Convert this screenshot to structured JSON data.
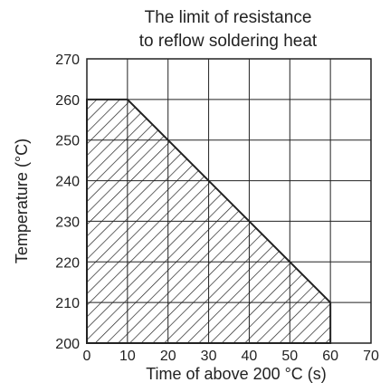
{
  "chart_data": {
    "type": "area",
    "title": "The limit of resistance",
    "subtitle": "to reflow soldering heat",
    "xlabel": "Time of above 200 °C (s)",
    "ylabel": "Temperature (°C)",
    "xlim": [
      0,
      70
    ],
    "ylim": [
      200,
      270
    ],
    "xticks": [
      0,
      10,
      20,
      30,
      40,
      50,
      60,
      70
    ],
    "yticks": [
      200,
      210,
      220,
      230,
      240,
      250,
      260,
      270
    ],
    "grid": true,
    "fill_pattern": "diagonal hatch",
    "series": [
      {
        "x": [
          0,
          0,
          10,
          60,
          60
        ],
        "y": [
          200,
          260,
          260,
          210,
          200
        ]
      }
    ]
  },
  "colors": {
    "axis": "#222222",
    "grid": "#222222",
    "hatch": "#222222",
    "background": "#ffffff"
  }
}
